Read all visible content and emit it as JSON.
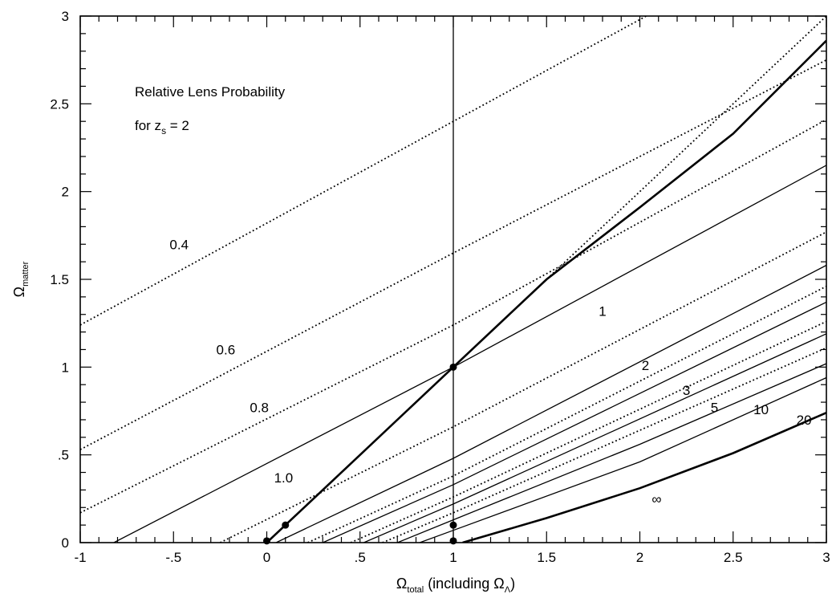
{
  "chart_data": {
    "type": "line",
    "title": "",
    "annotation": {
      "line1": "Relative Lens Probability",
      "line2_prefix": "for z",
      "line2_sub": "s",
      "line2_suffix": " = 2"
    },
    "xlabel": {
      "omega": "Ω",
      "sub": "total",
      "middle": " (including Ω",
      "sub2": "Λ",
      "end": ")"
    },
    "ylabel": {
      "omega": "Ω",
      "sub": "matter"
    },
    "xlim": [
      -1,
      3
    ],
    "ylim": [
      0,
      3
    ],
    "xticks": [
      {
        "v": -1,
        "label": "-1"
      },
      {
        "v": -0.5,
        "label": "-.5"
      },
      {
        "v": 0,
        "label": "0"
      },
      {
        "v": 0.5,
        "label": ".5"
      },
      {
        "v": 1,
        "label": "1"
      },
      {
        "v": 1.5,
        "label": "1.5"
      },
      {
        "v": 2,
        "label": "2"
      },
      {
        "v": 2.5,
        "label": "2.5"
      },
      {
        "v": 3,
        "label": "3"
      }
    ],
    "yticks": [
      {
        "v": 0,
        "label": "0"
      },
      {
        "v": 0.5,
        "label": ".5"
      },
      {
        "v": 1,
        "label": "1"
      },
      {
        "v": 1.5,
        "label": "1.5"
      },
      {
        "v": 2,
        "label": "2"
      },
      {
        "v": 2.5,
        "label": "2.5"
      },
      {
        "v": 3,
        "label": "3"
      }
    ],
    "series": [
      {
        "label": "0.4",
        "style": "dotted",
        "points": [
          [
            -1,
            1.24
          ],
          [
            3,
            3.56
          ]
        ]
      },
      {
        "label": "0.6",
        "style": "dotted",
        "points": [
          [
            -1,
            0.53
          ],
          [
            1,
            1.65
          ],
          [
            3,
            2.75
          ]
        ]
      },
      {
        "label": "0.8",
        "style": "dotted",
        "points": [
          [
            -1,
            0.17
          ],
          [
            1,
            1.24
          ],
          [
            3,
            2.41
          ]
        ]
      },
      {
        "label": "1.0",
        "style": "solid",
        "points": [
          [
            -0.82,
            0
          ],
          [
            1,
            1.0
          ],
          [
            3,
            2.15
          ]
        ]
      },
      {
        "label": "",
        "style": "dotted",
        "points": [
          [
            -0.25,
            0
          ],
          [
            1,
            0.66
          ],
          [
            3,
            1.77
          ]
        ]
      },
      {
        "label": "2",
        "style": "solid",
        "points": [
          [
            0.05,
            0
          ],
          [
            1,
            0.48
          ],
          [
            3,
            1.58
          ]
        ]
      },
      {
        "label": "",
        "style": "dotted",
        "points": [
          [
            0.22,
            0
          ],
          [
            1,
            0.38
          ],
          [
            3,
            1.46
          ]
        ]
      },
      {
        "label": "3",
        "style": "solid",
        "points": [
          [
            0.3,
            0
          ],
          [
            1,
            0.33
          ],
          [
            3,
            1.37
          ]
        ]
      },
      {
        "label": "",
        "style": "dotted",
        "points": [
          [
            0.45,
            0
          ],
          [
            1,
            0.26
          ],
          [
            3,
            1.26
          ]
        ]
      },
      {
        "label": "5",
        "style": "solid",
        "points": [
          [
            0.52,
            0
          ],
          [
            1,
            0.22
          ],
          [
            3,
            1.19
          ]
        ]
      },
      {
        "label": "",
        "style": "dotted",
        "points": [
          [
            0.62,
            0
          ],
          [
            1,
            0.17
          ],
          [
            3,
            1.11
          ]
        ]
      },
      {
        "label": "10",
        "style": "solid",
        "points": [
          [
            0.7,
            0
          ],
          [
            1,
            0.13
          ],
          [
            2,
            0.56
          ],
          [
            3,
            1.02
          ]
        ]
      },
      {
        "label": "20",
        "style": "solid",
        "points": [
          [
            0.82,
            0
          ],
          [
            1,
            0.07
          ],
          [
            2,
            0.46
          ],
          [
            3,
            0.94
          ]
        ]
      },
      {
        "label": "∞",
        "style": "bold",
        "points": [
          [
            1.05,
            0
          ],
          [
            1.5,
            0.14
          ],
          [
            2,
            0.31
          ],
          [
            2.5,
            0.51
          ],
          [
            3,
            0.74
          ]
        ]
      },
      {
        "label": "",
        "style": "bold",
        "points": [
          [
            0,
            0
          ],
          [
            0.1,
            0.1
          ],
          [
            0.5,
            0.5
          ],
          [
            1,
            1
          ],
          [
            1.5,
            1.5
          ],
          [
            2,
            1.91
          ],
          [
            2.5,
            2.33
          ],
          [
            3,
            2.86
          ]
        ]
      },
      {
        "label": "",
        "style": "dotted",
        "points": [
          [
            0,
            0
          ],
          [
            3,
            3.0
          ]
        ]
      },
      {
        "label": "",
        "style": "solid",
        "points": [
          [
            1,
            0
          ],
          [
            1,
            3
          ]
        ]
      }
    ],
    "points": [
      [
        0,
        0.01
      ],
      [
        0.1,
        0.1
      ],
      [
        1,
        1.0
      ],
      [
        1,
        0.1
      ],
      [
        1,
        0.01
      ]
    ],
    "labels": [
      {
        "text": "0.4",
        "x": -0.47,
        "y": 1.7
      },
      {
        "text": "0.6",
        "x": -0.22,
        "y": 1.1
      },
      {
        "text": "0.8",
        "x": -0.04,
        "y": 0.77
      },
      {
        "text": "1.0",
        "x": 0.09,
        "y": 0.37
      },
      {
        "text": "1",
        "x": 1.8,
        "y": 1.32
      },
      {
        "text": "2",
        "x": 2.03,
        "y": 1.01
      },
      {
        "text": "3",
        "x": 2.25,
        "y": 0.87
      },
      {
        "text": "5",
        "x": 2.4,
        "y": 0.77
      },
      {
        "text": "10",
        "x": 2.65,
        "y": 0.76
      },
      {
        "text": "20",
        "x": 2.88,
        "y": 0.7
      },
      {
        "text": "∞",
        "x": 2.09,
        "y": 0.25
      }
    ],
    "grid": false,
    "legend": "none"
  }
}
